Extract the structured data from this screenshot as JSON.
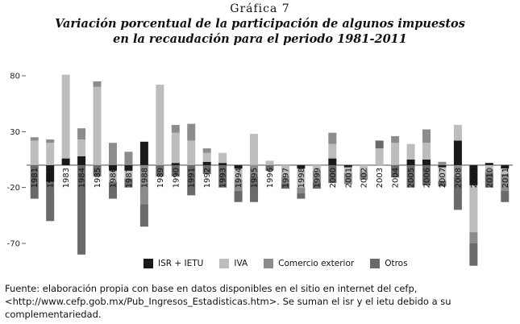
{
  "figure": {
    "kicker": "Gráfica 7",
    "title_line1": "Variación porcentual de la participación de algunos impuestos",
    "title_line2": "en la recaudación para el periodo 1981-2011",
    "source_text": "Fuente: elaboración propia con base en datos disponibles en el sitio en internet del cefp, <http://www.cefp.gob.mx/Pub_Ingresos_Estadisticas.htm>. Se suman el isr y el ietu debido a su complementariedad."
  },
  "colors": {
    "ISR + IETU": "#1a1a1a",
    "IVA": "#bdbdbd",
    "Comercio exterior": "#8c8c8c",
    "Otros": "#6a6a6a"
  },
  "chart_data": {
    "type": "bar",
    "stacked": true,
    "title": "Variación porcentual de la participación de algunos impuestos en la recaudación para el periodo 1981-2011",
    "xlabel": "",
    "ylabel": "",
    "ylim": [
      -70,
      80
    ],
    "yticks": [
      80,
      30,
      -20,
      -70
    ],
    "grid": false,
    "legend_position": "bottom",
    "categories": [
      "1981",
      "1982",
      "1983",
      "1984",
      "1985",
      "1986",
      "1987",
      "1988",
      "1989",
      "1990",
      "1991",
      "1992",
      "1993",
      "1994",
      "1995",
      "1996",
      "1997",
      "1998",
      "1999",
      "2000",
      "2001",
      "2002",
      "2003",
      "2004",
      "2005",
      "2006",
      "2007",
      "2008",
      "2009",
      "2010",
      "2011"
    ],
    "series": [
      {
        "name": "ISR + IETU",
        "values": [
          0,
          -15,
          6,
          8,
          0,
          -5,
          -5,
          21,
          0,
          2,
          0,
          3,
          2,
          -3,
          0,
          0,
          0,
          -3,
          0,
          6,
          -2,
          0,
          0,
          0,
          5,
          5,
          -2,
          22,
          -18,
          2,
          -3
        ]
      },
      {
        "name": "IVA",
        "values": [
          22,
          20,
          75,
          15,
          70,
          -10,
          -7,
          0,
          72,
          27,
          22,
          8,
          9,
          -10,
          28,
          4,
          -10,
          -17,
          -5,
          13,
          -5,
          -6,
          15,
          20,
          14,
          15,
          -12,
          14,
          -42,
          -4,
          -5
        ]
      },
      {
        "name": "Comercio exterior",
        "values": [
          3,
          3,
          0,
          10,
          5,
          20,
          12,
          -35,
          0,
          7,
          15,
          4,
          0,
          -10,
          -10,
          0,
          -6,
          -5,
          -10,
          10,
          -10,
          -7,
          0,
          6,
          0,
          12,
          3,
          -10,
          -10,
          -3,
          -15
        ]
      },
      {
        "name": "Otros",
        "values": [
          -30,
          -35,
          0,
          -80,
          -10,
          -15,
          -8,
          -20,
          -10,
          -10,
          -27,
          -8,
          -20,
          -10,
          -23,
          -5,
          -5,
          -5,
          -6,
          -16,
          0,
          0,
          7,
          -11,
          -20,
          -18,
          -5,
          -30,
          -20,
          -13,
          -10
        ]
      }
    ]
  }
}
